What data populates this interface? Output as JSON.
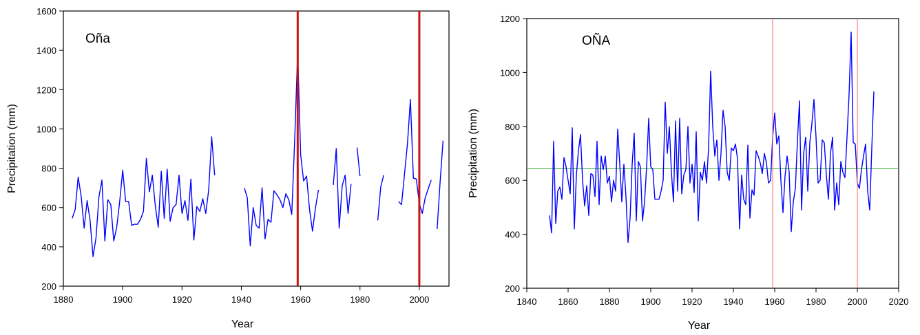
{
  "chart_data": [
    {
      "type": "line",
      "title": "Oña",
      "xlabel": "Year",
      "ylabel": "Precipitation (mm)",
      "xlim": [
        1880,
        2010
      ],
      "ylim": [
        200,
        1600
      ],
      "xticks": [
        1880,
        1900,
        1920,
        1940,
        1960,
        1980,
        2000
      ],
      "yticks": [
        200,
        400,
        600,
        800,
        1000,
        1200,
        1400,
        1600
      ],
      "grid": false,
      "series_color": "#0000ff",
      "marker_color": "#cc1111",
      "vertical_lines": [
        1959,
        2000
      ],
      "series": [
        {
          "points": [
            [
              1883,
              545
            ],
            [
              1884,
              590
            ],
            [
              1885,
              755
            ],
            [
              1886,
              660
            ],
            [
              1887,
              495
            ],
            [
              1888,
              635
            ],
            [
              1889,
              535
            ],
            [
              1890,
              350
            ],
            [
              1891,
              445
            ],
            [
              1892,
              655
            ],
            [
              1893,
              740
            ],
            [
              1894,
              430
            ],
            [
              1895,
              640
            ],
            [
              1896,
              615
            ],
            [
              1897,
              430
            ],
            [
              1898,
              500
            ],
            [
              1899,
              630
            ],
            [
              1900,
              790
            ],
            [
              1901,
              630
            ],
            [
              1902,
              630
            ],
            [
              1903,
              510
            ],
            [
              1904,
              515
            ],
            [
              1905,
              515
            ],
            [
              1906,
              540
            ],
            [
              1907,
              580
            ],
            [
              1908,
              850
            ],
            [
              1909,
              680
            ],
            [
              1910,
              765
            ],
            [
              1911,
              610
            ],
            [
              1912,
              500
            ],
            [
              1913,
              785
            ],
            [
              1914,
              545
            ],
            [
              1915,
              795
            ],
            [
              1916,
              530
            ],
            [
              1917,
              600
            ],
            [
              1918,
              615
            ],
            [
              1919,
              765
            ],
            [
              1920,
              570
            ],
            [
              1921,
              635
            ],
            [
              1922,
              535
            ],
            [
              1923,
              745
            ],
            [
              1924,
              435
            ],
            [
              1925,
              605
            ],
            [
              1926,
              580
            ],
            [
              1927,
              645
            ],
            [
              1928,
              570
            ],
            [
              1929,
              690
            ],
            [
              1930,
              960
            ],
            [
              1931,
              765
            ]
          ]
        },
        {
          "points": [
            [
              1941,
              700
            ],
            [
              1942,
              650
            ],
            [
              1943,
              405
            ],
            [
              1944,
              600
            ],
            [
              1945,
              510
            ],
            [
              1946,
              495
            ],
            [
              1947,
              700
            ],
            [
              1948,
              440
            ],
            [
              1949,
              540
            ],
            [
              1950,
              525
            ],
            [
              1951,
              685
            ],
            [
              1952,
              665
            ],
            [
              1953,
              640
            ],
            [
              1954,
              600
            ],
            [
              1955,
              670
            ],
            [
              1956,
              640
            ],
            [
              1957,
              565
            ],
            [
              1958,
              950
            ],
            [
              1959,
              1395
            ],
            [
              1960,
              870
            ],
            [
              1961,
              735
            ],
            [
              1962,
              760
            ],
            [
              1963,
              590
            ],
            [
              1964,
              480
            ],
            [
              1965,
              600
            ],
            [
              1966,
              690
            ]
          ]
        },
        {
          "points": [
            [
              1971,
              715
            ],
            [
              1972,
              900
            ],
            [
              1973,
              495
            ],
            [
              1974,
              710
            ],
            [
              1975,
              765
            ],
            [
              1976,
              570
            ],
            [
              1977,
              720
            ]
          ]
        },
        {
          "points": [
            [
              1979,
              905
            ],
            [
              1980,
              760
            ]
          ]
        },
        {
          "points": [
            [
              1986,
              535
            ],
            [
              1987,
              705
            ],
            [
              1988,
              765
            ]
          ]
        },
        {
          "points": [
            [
              1993,
              630
            ],
            [
              1994,
              615
            ],
            [
              1995,
              770
            ],
            [
              1996,
              925
            ],
            [
              1997,
              1150
            ],
            [
              1998,
              750
            ],
            [
              1999,
              745
            ],
            [
              2000,
              620
            ],
            [
              2001,
              570
            ],
            [
              2002,
              650
            ],
            [
              2003,
              695
            ],
            [
              2004,
              740
            ]
          ]
        },
        {
          "points": [
            [
              2006,
              490
            ],
            [
              2007,
              730
            ],
            [
              2008,
              940
            ]
          ]
        }
      ]
    },
    {
      "type": "line",
      "title": "OÑA",
      "xlabel": "Year",
      "ylabel": "Precipitation (mm)",
      "xlim": [
        1840,
        2020
      ],
      "ylim": [
        200,
        1200
      ],
      "xticks": [
        1840,
        1860,
        1880,
        1900,
        1920,
        1940,
        1960,
        1980,
        2000,
        2020
      ],
      "yticks": [
        200,
        400,
        600,
        800,
        1000,
        1200
      ],
      "grid": false,
      "series_color": "#0000ff",
      "marker_color": "#ff6666",
      "mean_line_color": "#33aa33",
      "mean_line": 645,
      "vertical_lines": [
        1959,
        2000
      ],
      "series": [
        {
          "points": [
            [
              1851,
              470
            ],
            [
              1852,
              405
            ],
            [
              1853,
              745
            ],
            [
              1854,
              440
            ],
            [
              1855,
              560
            ],
            [
              1856,
              575
            ],
            [
              1857,
              530
            ],
            [
              1858,
              685
            ],
            [
              1859,
              650
            ],
            [
              1860,
              600
            ],
            [
              1861,
              550
            ],
            [
              1862,
              795
            ],
            [
              1863,
              420
            ],
            [
              1864,
              620
            ],
            [
              1865,
              710
            ],
            [
              1866,
              770
            ],
            [
              1867,
              600
            ],
            [
              1868,
              505
            ],
            [
              1869,
              580
            ],
            [
              1870,
              470
            ],
            [
              1871,
              625
            ],
            [
              1872,
              620
            ],
            [
              1873,
              540
            ],
            [
              1874,
              745
            ],
            [
              1875,
              510
            ],
            [
              1876,
              690
            ],
            [
              1877,
              640
            ],
            [
              1878,
              690
            ],
            [
              1879,
              590
            ],
            [
              1880,
              615
            ],
            [
              1881,
              520
            ],
            [
              1882,
              600
            ],
            [
              1883,
              560
            ],
            [
              1884,
              790
            ],
            [
              1885,
              660
            ],
            [
              1886,
              520
            ],
            [
              1887,
              660
            ],
            [
              1888,
              540
            ],
            [
              1889,
              370
            ],
            [
              1890,
              460
            ],
            [
              1891,
              660
            ],
            [
              1892,
              775
            ],
            [
              1893,
              450
            ],
            [
              1894,
              670
            ],
            [
              1895,
              650
            ],
            [
              1896,
              450
            ],
            [
              1897,
              520
            ],
            [
              1898,
              650
            ],
            [
              1899,
              830
            ],
            [
              1900,
              650
            ],
            [
              1901,
              640
            ],
            [
              1902,
              530
            ],
            [
              1903,
              530
            ],
            [
              1904,
              530
            ],
            [
              1905,
              560
            ],
            [
              1906,
              600
            ],
            [
              1907,
              890
            ],
            [
              1908,
              700
            ],
            [
              1909,
              800
            ],
            [
              1910,
              630
            ],
            [
              1911,
              520
            ],
            [
              1912,
              820
            ],
            [
              1913,
              560
            ],
            [
              1914,
              830
            ],
            [
              1915,
              550
            ],
            [
              1916,
              620
            ],
            [
              1917,
              640
            ],
            [
              1918,
              800
            ],
            [
              1919,
              590
            ],
            [
              1920,
              660
            ],
            [
              1921,
              555
            ],
            [
              1922,
              780
            ],
            [
              1923,
              450
            ],
            [
              1924,
              630
            ],
            [
              1925,
              600
            ],
            [
              1926,
              670
            ],
            [
              1927,
              590
            ],
            [
              1928,
              720
            ],
            [
              1929,
              1005
            ],
            [
              1930,
              800
            ],
            [
              1931,
              690
            ],
            [
              1932,
              750
            ],
            [
              1933,
              600
            ],
            [
              1934,
              700
            ],
            [
              1935,
              860
            ],
            [
              1936,
              800
            ],
            [
              1937,
              630
            ],
            [
              1938,
              600
            ],
            [
              1939,
              720
            ],
            [
              1940,
              710
            ],
            [
              1941,
              735
            ],
            [
              1942,
              680
            ],
            [
              1943,
              420
            ],
            [
              1944,
              620
            ],
            [
              1945,
              530
            ],
            [
              1946,
              510
            ],
            [
              1947,
              730
            ],
            [
              1948,
              460
            ],
            [
              1949,
              565
            ],
            [
              1950,
              545
            ],
            [
              1951,
              710
            ],
            [
              1952,
              690
            ],
            [
              1953,
              665
            ],
            [
              1954,
              625
            ],
            [
              1955,
              700
            ],
            [
              1956,
              665
            ],
            [
              1957,
              590
            ],
            [
              1958,
              600
            ],
            [
              1959,
              760
            ],
            [
              1960,
              850
            ],
            [
              1961,
              735
            ],
            [
              1962,
              765
            ],
            [
              1963,
              600
            ],
            [
              1964,
              480
            ],
            [
              1965,
              615
            ],
            [
              1966,
              690
            ],
            [
              1967,
              630
            ],
            [
              1968,
              410
            ],
            [
              1969,
              520
            ],
            [
              1970,
              570
            ],
            [
              1971,
              745
            ],
            [
              1972,
              895
            ],
            [
              1973,
              490
            ],
            [
              1974,
              700
            ],
            [
              1975,
              760
            ],
            [
              1976,
              560
            ],
            [
              1977,
              740
            ],
            [
              1978,
              810
            ],
            [
              1979,
              900
            ],
            [
              1980,
              760
            ],
            [
              1981,
              590
            ],
            [
              1982,
              600
            ],
            [
              1983,
              750
            ],
            [
              1984,
              740
            ],
            [
              1985,
              620
            ],
            [
              1986,
              530
            ],
            [
              1987,
              700
            ],
            [
              1988,
              760
            ],
            [
              1989,
              490
            ],
            [
              1990,
              590
            ],
            [
              1991,
              510
            ],
            [
              1992,
              670
            ],
            [
              1993,
              630
            ],
            [
              1994,
              610
            ],
            [
              1995,
              760
            ],
            [
              1996,
              920
            ],
            [
              1997,
              1150
            ],
            [
              1998,
              740
            ],
            [
              1999,
              735
            ],
            [
              2000,
              590
            ],
            [
              2001,
              570
            ],
            [
              2002,
              640
            ],
            [
              2003,
              690
            ],
            [
              2004,
              735
            ],
            [
              2005,
              560
            ],
            [
              2006,
              490
            ],
            [
              2007,
              720
            ],
            [
              2008,
              930
            ]
          ]
        }
      ]
    }
  ]
}
